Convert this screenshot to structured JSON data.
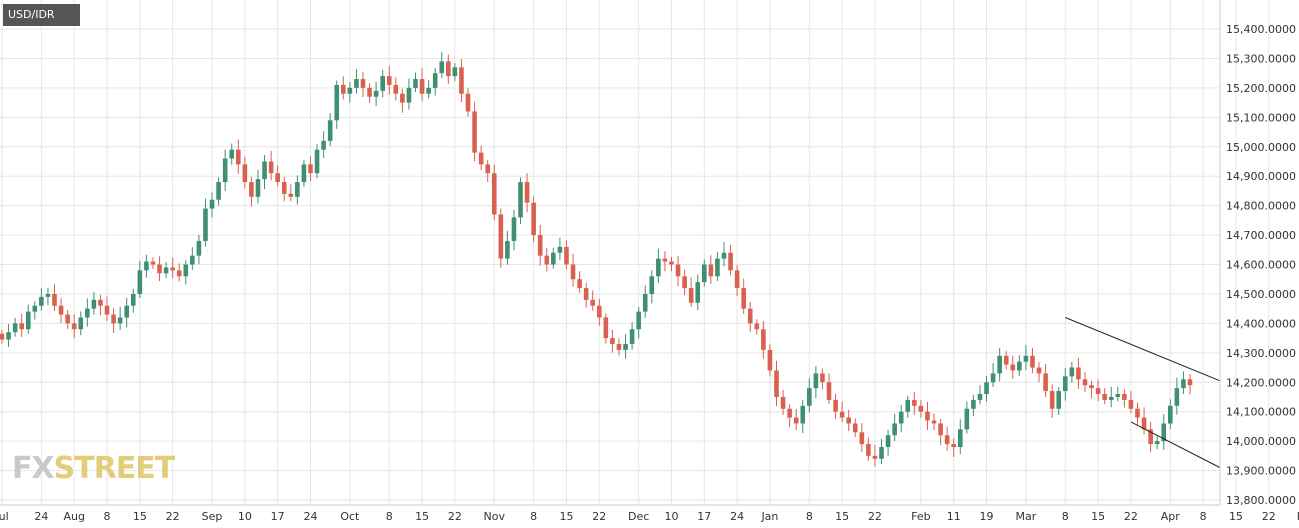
{
  "symbol": "USD/IDR",
  "watermark": {
    "part1": "FX",
    "part2": "STREET"
  },
  "colors": {
    "up": "#3f8f72",
    "down": "#d9614f",
    "grid": "#e6e6e6",
    "axis": "#cccccc",
    "channel": "#222222"
  },
  "chart_data": {
    "type": "candlestick",
    "title": "USD/IDR",
    "xlabel": "",
    "ylabel": "",
    "ylim": [
      13800,
      15500
    ],
    "y_ticks": [
      "15,400.0000",
      "15,300.0000",
      "15,200.0000",
      "15,100.0000",
      "15,000.0000",
      "14,900.0000",
      "14,800.0000",
      "14,700.0000",
      "14,600.0000",
      "14,500.0000",
      "14,400.0000",
      "14,300.0000",
      "14,200.0000",
      "14,100.0000",
      "14,000.0000",
      "13,900.0000",
      "13,800.0000"
    ],
    "x_ticks": [
      "Jul",
      "24",
      "Aug",
      "8",
      "15",
      "22",
      "Sep",
      "10",
      "17",
      "24",
      "Oct",
      "8",
      "15",
      "22",
      "Nov",
      "8",
      "15",
      "22",
      "Dec",
      "10",
      "17",
      "24",
      "Jan",
      "8",
      "15",
      "22",
      "Feb",
      "11",
      "19",
      "Mar",
      "8",
      "15",
      "22",
      "Apr",
      "8",
      "15",
      "22",
      "May"
    ],
    "x_tick_positions": [
      0,
      6,
      11,
      16,
      21,
      26,
      32,
      37,
      42,
      47,
      53,
      59,
      64,
      69,
      75,
      81,
      86,
      91,
      97,
      102,
      107,
      112,
      117,
      123,
      128,
      133,
      140,
      145,
      150,
      156,
      162,
      167,
      172,
      178,
      183,
      188,
      193,
      199
    ],
    "channel_upper": {
      "start_index": 162,
      "start_price": 14420,
      "end_price": 14205
    },
    "channel_lower": {
      "start_index": 172,
      "start_price": 14065,
      "end_price": 13910
    },
    "closes": [
      14345,
      14370,
      14400,
      14380,
      14440,
      14460,
      14490,
      14500,
      14460,
      14430,
      14400,
      14380,
      14420,
      14450,
      14480,
      14460,
      14430,
      14400,
      14420,
      14460,
      14500,
      14580,
      14610,
      14600,
      14570,
      14590,
      14580,
      14560,
      14600,
      14630,
      14680,
      14790,
      14820,
      14880,
      14960,
      14990,
      14940,
      14880,
      14830,
      14890,
      14950,
      14910,
      14880,
      14840,
      14830,
      14880,
      14940,
      14910,
      14990,
      15020,
      15090,
      15210,
      15180,
      15200,
      15230,
      15200,
      15170,
      15190,
      15240,
      15210,
      15180,
      15150,
      15200,
      15230,
      15180,
      15200,
      15250,
      15290,
      15240,
      15270,
      15180,
      15120,
      14980,
      14940,
      14910,
      14770,
      14620,
      14680,
      14760,
      14880,
      14810,
      14700,
      14630,
      14600,
      14640,
      14660,
      14600,
      14550,
      14520,
      14480,
      14460,
      14420,
      14350,
      14330,
      14310,
      14330,
      14380,
      14440,
      14500,
      14560,
      14620,
      14610,
      14600,
      14560,
      14520,
      14470,
      14540,
      14600,
      14560,
      14620,
      14640,
      14580,
      14520,
      14450,
      14400,
      14380,
      14310,
      14240,
      14150,
      14110,
      14080,
      14060,
      14120,
      14180,
      14230,
      14200,
      14140,
      14100,
      14080,
      14060,
      14030,
      13990,
      13950,
      13940,
      13980,
      14020,
      14060,
      14100,
      14140,
      14120,
      14100,
      14070,
      14060,
      14020,
      13990,
      13980,
      14040,
      14110,
      14140,
      14160,
      14200,
      14230,
      14290,
      14260,
      14240,
      14270,
      14290,
      14250,
      14230,
      14170,
      14110,
      14170,
      14220,
      14250,
      14210,
      14190,
      14180,
      14160,
      14140,
      14150,
      14160,
      14140,
      14110,
      14080,
      14040,
      13990,
      14000,
      14060,
      14120,
      14180,
      14210,
      14190
    ]
  }
}
